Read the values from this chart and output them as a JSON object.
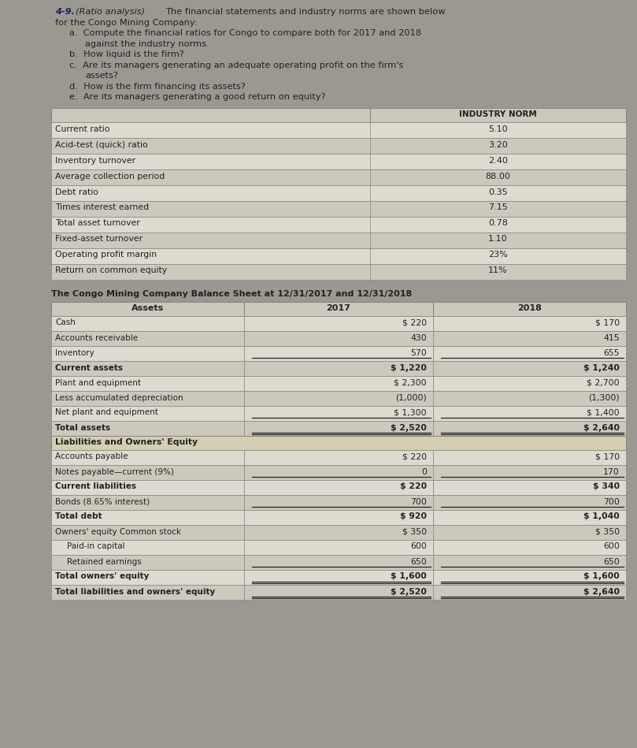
{
  "page_bg": "#9a9890",
  "table_bg_even": "#dedad0",
  "table_bg_odd": "#ccc8bc",
  "table_header_bg": "#ccc8bc",
  "table_border": "#888880",
  "text_color": "#222222",
  "title_color": "#1a1a6e",
  "industry_rows": [
    [
      "Current ratio",
      "5.10"
    ],
    [
      "Acid-test (quick) ratio",
      "3.20"
    ],
    [
      "Inventory turnover",
      "2.40"
    ],
    [
      "Average collection period",
      "88.00"
    ],
    [
      "Debt ratio",
      "0.35"
    ],
    [
      "Times interest earned",
      "7.15"
    ],
    [
      "Total asset turnover",
      "0.78"
    ],
    [
      "Fixed-asset turnover",
      "1.10"
    ],
    [
      "Operating profit margin",
      "23%"
    ],
    [
      "Return on common equity",
      "11%"
    ]
  ],
  "balance_sheet_title": "The Congo Mining Company Balance Sheet at 12/31/2017 and 12/31/2018",
  "balance_sheet_headers": [
    "Assets",
    "2017",
    "2018"
  ],
  "assets_rows": [
    [
      "Cash",
      "$ 220",
      "$ 170",
      false,
      false
    ],
    [
      "Accounts receivable",
      "430",
      "415",
      false,
      false
    ],
    [
      "Inventory",
      "570",
      "655",
      false,
      true
    ],
    [
      "Current assets",
      "$ 1,220",
      "$ 1,240",
      false,
      false
    ],
    [
      "Plant and equipment",
      "$ 2,300",
      "$ 2,700",
      false,
      false
    ],
    [
      "Less accumulated depreciation",
      "(1,000)",
      "(1,300)",
      false,
      false
    ],
    [
      "Net plant and equipment",
      "$ 1,300",
      "$ 1,400",
      false,
      true
    ],
    [
      "Total assets",
      "$ 2,520",
      "$ 2,640",
      true,
      false
    ]
  ],
  "assets_bold": [
    3,
    7
  ],
  "liabilities_section_header": "Liabilities and Owners' Equity",
  "liabilities_rows": [
    [
      "Accounts payable",
      "$ 220",
      "$ 170",
      false,
      false
    ],
    [
      "Notes payable—current (9%)",
      "0",
      "170",
      false,
      true
    ],
    [
      "Current liabilities",
      "$ 220",
      "$ 340",
      false,
      false
    ],
    [
      "Bonds (8.65% interest)",
      "700",
      "700",
      false,
      true
    ],
    [
      "Total debt",
      "$ 920",
      "$ 1,040",
      false,
      false
    ],
    [
      "Owners' equity Common stock",
      "$ 350",
      "$ 350",
      false,
      false
    ],
    [
      "Paid-in capital",
      "600",
      "600",
      false,
      false
    ],
    [
      "Retained earnings",
      "650",
      "650",
      false,
      true
    ],
    [
      "Total owners' equity",
      "$ 1,600",
      "$ 1,600",
      true,
      false
    ],
    [
      "Total liabilities and owners' equity",
      "$ 2,520",
      "$ 2,640",
      true,
      false
    ]
  ],
  "liabilities_bold": [
    2,
    4,
    8,
    9
  ],
  "liabilities_indent": [
    6,
    7
  ]
}
